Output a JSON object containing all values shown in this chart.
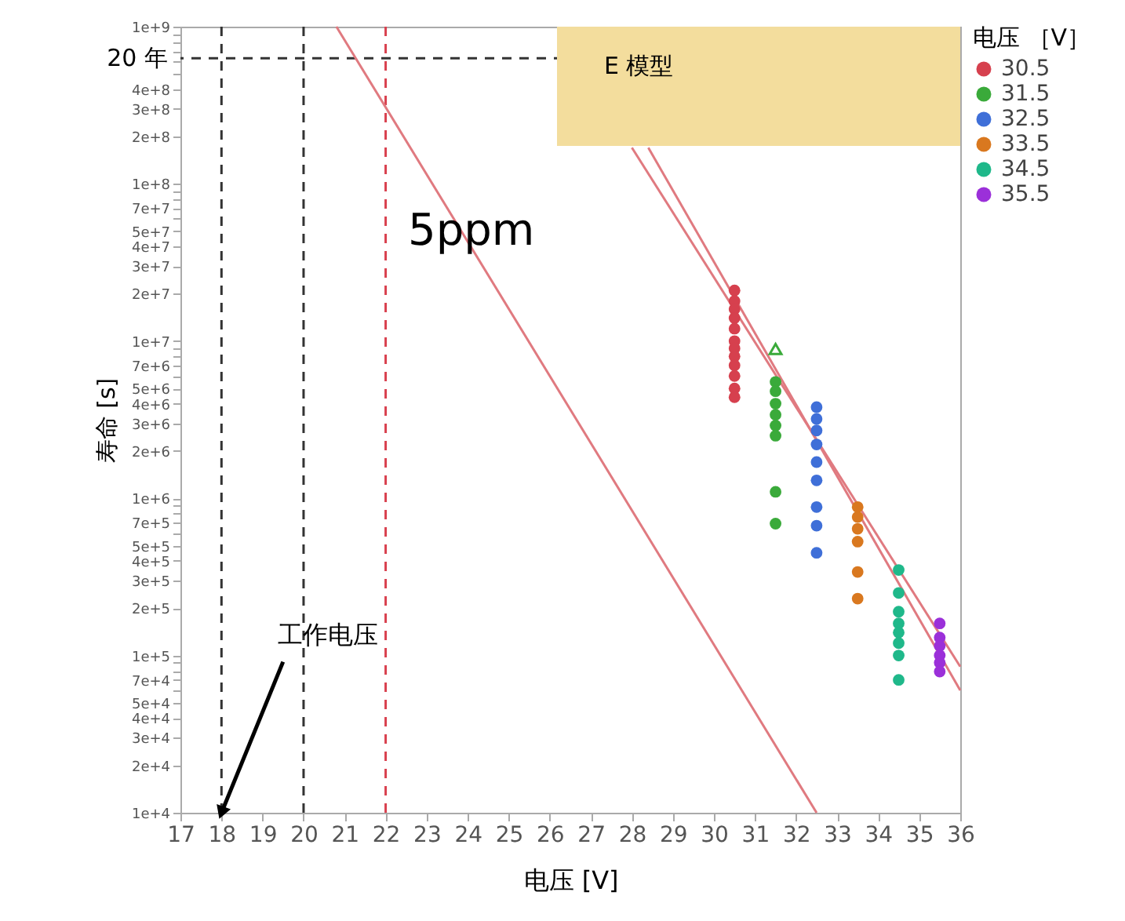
{
  "chart_data": {
    "type": "scatter",
    "xlabel": "电压 [V]",
    "ylabel": "寿命 [s]",
    "legend_title": "电压 ［V］",
    "legend": "top right",
    "marker": "circle",
    "log": "y",
    "xlim": [
      17,
      36
    ],
    "xticks": [
      17,
      18,
      19,
      20,
      21,
      22,
      23,
      24,
      25,
      26,
      27,
      28,
      29,
      30,
      31,
      32,
      33,
      34,
      35,
      36
    ],
    "ylim": [
      10000,
      1000000000
    ],
    "yticks": [
      {
        "value": 10000,
        "label": "1e+4"
      },
      {
        "value": 20000,
        "label": "2e+4"
      },
      {
        "value": 30000,
        "label": "3e+4"
      },
      {
        "value": 40000,
        "label": "4e+4"
      },
      {
        "value": 50000,
        "label": "5e+4"
      },
      {
        "value": 60000,
        "label": null
      },
      {
        "value": 70000,
        "label": "7e+4"
      },
      {
        "value": 80000,
        "label": null
      },
      {
        "value": 90000,
        "label": null
      },
      {
        "value": 100000,
        "label": "1e+5"
      },
      {
        "value": 200000,
        "label": "2e+5"
      },
      {
        "value": 300000,
        "label": "3e+5"
      },
      {
        "value": 400000,
        "label": "4e+5"
      },
      {
        "value": 500000,
        "label": "5e+5"
      },
      {
        "value": 600000,
        "label": null
      },
      {
        "value": 700000,
        "label": "7e+5"
      },
      {
        "value": 800000,
        "label": null
      },
      {
        "value": 900000,
        "label": null
      },
      {
        "value": 1000000,
        "label": "1e+6"
      },
      {
        "value": 2000000,
        "label": "2e+6"
      },
      {
        "value": 3000000,
        "label": "3e+6"
      },
      {
        "value": 4000000,
        "label": "4e+6"
      },
      {
        "value": 5000000,
        "label": "5e+6"
      },
      {
        "value": 6000000,
        "label": null
      },
      {
        "value": 7000000,
        "label": "7e+6"
      },
      {
        "value": 8000000,
        "label": null
      },
      {
        "value": 9000000,
        "label": null
      },
      {
        "value": 10000000,
        "label": "1e+7"
      },
      {
        "value": 20000000,
        "label": "2e+7"
      },
      {
        "value": 30000000,
        "label": "3e+7"
      },
      {
        "value": 40000000,
        "label": "4e+7"
      },
      {
        "value": 50000000,
        "label": "5e+7"
      },
      {
        "value": 60000000,
        "label": null
      },
      {
        "value": 70000000,
        "label": "7e+7"
      },
      {
        "value": 80000000,
        "label": null
      },
      {
        "value": 90000000,
        "label": null
      },
      {
        "value": 100000000,
        "label": "1e+8"
      },
      {
        "value": 200000000,
        "label": "2e+8"
      },
      {
        "value": 300000000,
        "label": "3e+8"
      },
      {
        "value": 400000000,
        "label": "4e+8"
      },
      {
        "value": 500000000,
        "label": null
      },
      {
        "value": 600000000,
        "label": null
      },
      {
        "value": 700000000,
        "label": null
      },
      {
        "value": 800000000,
        "label": null
      },
      {
        "value": 900000000,
        "label": null
      },
      {
        "value": 1000000000,
        "label": "1e+9"
      }
    ],
    "series": [
      {
        "name": "30.5",
        "color": "#d6404e",
        "x": [
          30.5,
          30.5,
          30.5,
          30.5,
          30.5,
          30.5,
          30.5,
          30.5,
          30.5,
          30.5,
          30.5,
          30.5
        ],
        "values": [
          21000000,
          18000000,
          16000000,
          14000000,
          12000000,
          10000000,
          9000000,
          8000000,
          7000000,
          6000000,
          5000000,
          4400000
        ]
      },
      {
        "name": "31.5",
        "color": "#3aaa3a",
        "x": [
          31.5,
          31.5,
          31.5,
          31.5,
          31.5,
          31.5,
          31.5,
          31.5
        ],
        "values": [
          5500000,
          4800000,
          4000000,
          3400000,
          2900000,
          2500000,
          1100000,
          690000
        ]
      },
      {
        "name": "32.5",
        "color": "#3f6fd8",
        "x": [
          32.5,
          32.5,
          32.5,
          32.5,
          32.5,
          32.5,
          32.5,
          32.5,
          32.5
        ],
        "values": [
          3800000,
          3200000,
          2700000,
          2200000,
          1700000,
          1300000,
          880000,
          670000,
          450000
        ]
      },
      {
        "name": "33.5",
        "color": "#d9781f",
        "x": [
          33.5,
          33.5,
          33.5,
          33.5,
          33.5,
          33.5
        ],
        "values": [
          880000,
          760000,
          640000,
          530000,
          340000,
          230000
        ]
      },
      {
        "name": "34.5",
        "color": "#1fb88a",
        "x": [
          34.5,
          34.5,
          34.5,
          34.5,
          34.5,
          34.5,
          34.5,
          34.5
        ],
        "values": [
          350000,
          250000,
          190000,
          160000,
          140000,
          120000,
          100000,
          70000
        ]
      },
      {
        "name": "35.5",
        "color": "#9b30d9",
        "x": [
          35.5,
          35.5,
          35.5,
          35.5,
          35.5,
          35.5
        ],
        "values": [
          160000,
          130000,
          115000,
          100000,
          90000,
          79000
        ]
      },
      {
        "color": "#3aaa3a",
        "marker": "triangle",
        "x": [
          31.5
        ],
        "values": [
          8900000
        ]
      },
      {
        "type": "line",
        "color": "#e07a80",
        "marker": "none",
        "line_style": "solid",
        "x": [
          20.8,
          32.5
        ],
        "values": [
          1000000000,
          10000
        ]
      },
      {
        "type": "line",
        "color": "#e07a80",
        "marker": "none",
        "line_style": "solid",
        "x": [
          28.0,
          36
        ],
        "values": [
          170000000,
          85000
        ]
      },
      {
        "type": "line",
        "color": "#e07a80",
        "marker": "none",
        "line_style": "solid",
        "x": [
          28.4,
          36
        ],
        "values": [
          170000000,
          60000
        ]
      }
    ],
    "ref_lines": [
      {
        "axis": "x",
        "value": 18,
        "color": "#333333",
        "line_style": "dashed"
      },
      {
        "axis": "x",
        "value": 20,
        "color": "#333333",
        "line_style": "dashed"
      },
      {
        "axis": "x",
        "value": 22,
        "color": "#d9404e",
        "line_style": "dashed"
      },
      {
        "axis": "y",
        "value": 630000000,
        "label": "20 年",
        "color": "#333333",
        "line_style": "dashed"
      }
    ],
    "annotations": [
      "E 模型",
      "5ppm",
      {
        "text": "工作电压",
        "x": 18,
        "y": 10000
      }
    ]
  }
}
